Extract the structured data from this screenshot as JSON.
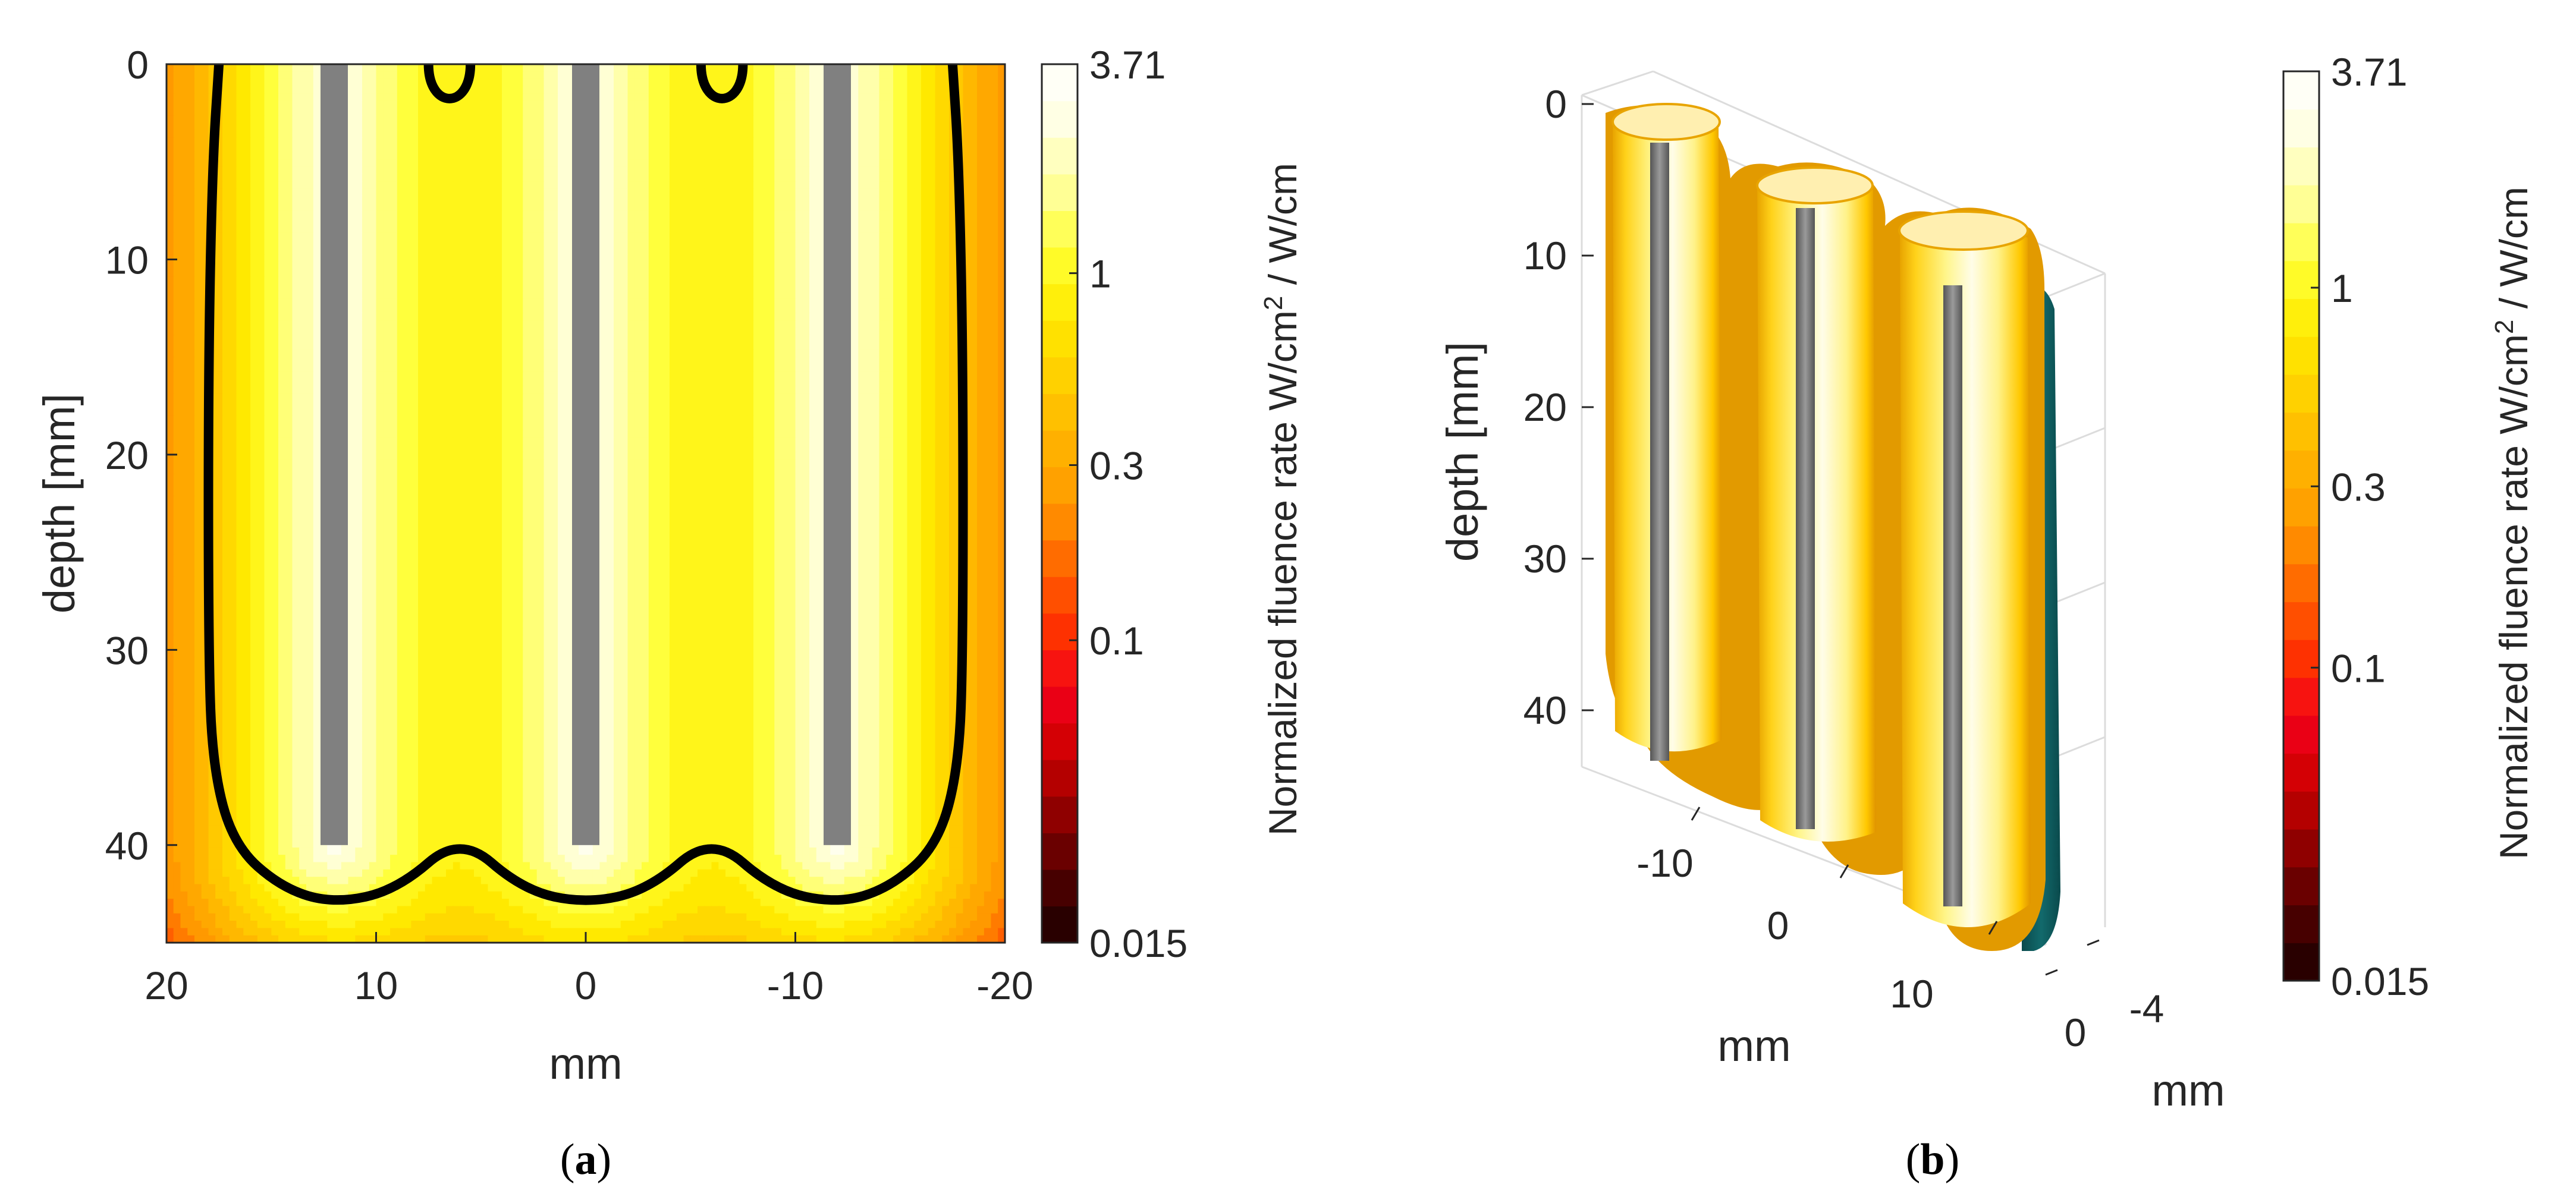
{
  "chart_data": [
    {
      "panel_label": "(a)",
      "type": "heatmap",
      "title": "",
      "xlabel": "mm",
      "ylabel": "depth [mm]",
      "xlim": [
        20,
        -20
      ],
      "ylim": [
        0,
        45
      ],
      "x_reversed": true,
      "y_reversed": true,
      "xticks": [
        "20",
        "10",
        "0",
        "-10",
        "-20"
      ],
      "xtick_values": [
        20,
        10,
        0,
        -10,
        -20
      ],
      "yticks": [
        "0",
        "10",
        "20",
        "30",
        "40"
      ],
      "ytick_values": [
        0,
        10,
        20,
        30,
        40
      ],
      "fibers": [
        {
          "x": 12,
          "depth_from": 0,
          "depth_to": 40
        },
        {
          "x": 0,
          "depth_from": 0,
          "depth_to": 40
        },
        {
          "x": -12,
          "depth_from": 0,
          "depth_to": 40
        }
      ],
      "isocontour": {
        "color": "#000000",
        "points": [
          [
            17.5,
            0
          ],
          [
            17.8,
            5
          ],
          [
            18,
            15
          ],
          [
            18,
            30
          ],
          [
            17.8,
            36
          ],
          [
            16.8,
            40
          ],
          [
            14.5,
            42.2
          ],
          [
            12,
            43
          ],
          [
            9,
            42.3
          ],
          [
            6,
            39.5
          ],
          [
            3,
            42.3
          ],
          [
            0,
            43
          ],
          [
            -3,
            42.3
          ],
          [
            -6,
            39.5
          ],
          [
            -9,
            42.3
          ],
          [
            -12,
            43
          ],
          [
            -14.5,
            42.2
          ],
          [
            -16.8,
            40
          ],
          [
            -17.8,
            36
          ],
          [
            -18,
            30
          ],
          [
            -18,
            15
          ],
          [
            -17.8,
            5
          ],
          [
            -17.5,
            0
          ]
        ],
        "small_loops": [
          {
            "x": 6.5,
            "depth": 0,
            "half_width": 1.0,
            "depth_to": 1.8
          },
          {
            "x": -6.5,
            "depth": 0,
            "half_width": 1.0,
            "depth_to": 1.8
          }
        ]
      },
      "colorbar": {
        "label": "Normalized fluence rate W/cm",
        "label_sup": "2",
        "label_suffix": " / W/cm",
        "scale": "log",
        "min": 0.015,
        "max": 3.71,
        "tick_labels": [
          "3.71",
          "1",
          "0.3",
          "0.1",
          "0.015"
        ],
        "tick_values": [
          3.71,
          1,
          0.3,
          0.1,
          0.015
        ],
        "levels": 24,
        "colormap": [
          "#1a0000",
          "#4d0000",
          "#8c0000",
          "#cc0000",
          "#f2001a",
          "#ff3300",
          "#ff6600",
          "#ff9900",
          "#ffb300",
          "#ffd000",
          "#ffeb00",
          "#ffff33",
          "#ffff99",
          "#ffffe0",
          "#ffffff"
        ]
      }
    },
    {
      "panel_label": "(b)",
      "type": "surface3d",
      "title": "",
      "xlabel": "mm",
      "ylabel": "depth [mm]",
      "zlabel": "mm",
      "xticks": [
        "-10",
        "0",
        "10"
      ],
      "xtick_values": [
        -10,
        0,
        10
      ],
      "yticks": [
        "0",
        "10",
        "20",
        "30",
        "40"
      ],
      "ytick_values": [
        0,
        10,
        20,
        30,
        40
      ],
      "zticks": [
        "0",
        "-4"
      ],
      "ztick_values": [
        0,
        -4
      ],
      "surface_colors": {
        "shell": "#ffb000",
        "inner": "#fffbe6",
        "cut_face": "#0c5a5c",
        "fiber": "#777777"
      },
      "colorbar": {
        "label": "Normalized fluence rate W/cm",
        "label_sup": "2",
        "label_suffix": " / W/cm",
        "scale": "log",
        "min": 0.015,
        "max": 3.71,
        "tick_labels": [
          "3.71",
          "1",
          "0.3",
          "0.1",
          "0.015"
        ],
        "tick_values": [
          3.71,
          1,
          0.3,
          0.1,
          0.015
        ],
        "levels": 24
      }
    }
  ]
}
